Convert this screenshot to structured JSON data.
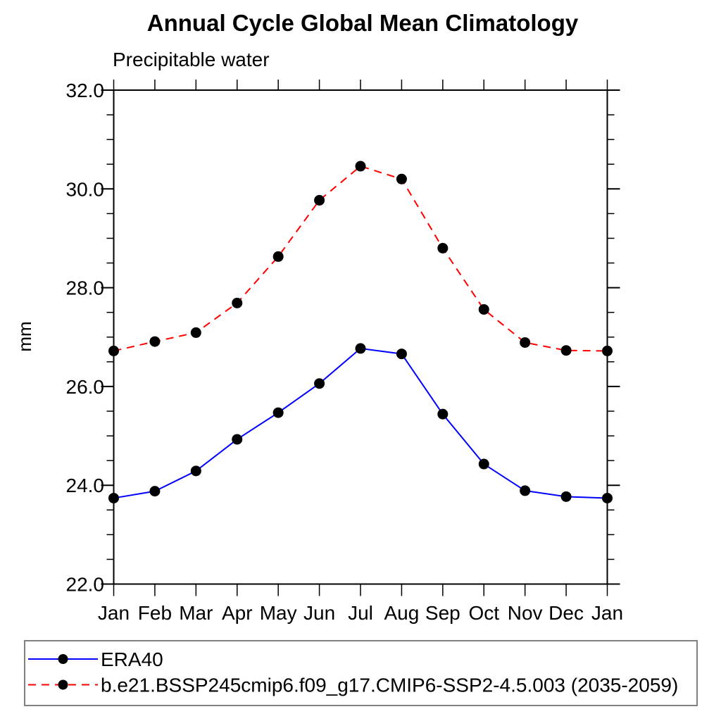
{
  "page": {
    "background": "#ffffff",
    "text_color": "#000000"
  },
  "chart_data": {
    "type": "line",
    "title": "Annual Cycle Global Mean Climatology",
    "subtitle": "Precipitable water",
    "ylabel": "mm",
    "xlabel": "",
    "categories": [
      "Jan",
      "Feb",
      "Mar",
      "Apr",
      "May",
      "Jun",
      "Jul",
      "Aug",
      "Sep",
      "Oct",
      "Nov",
      "Dec",
      "Jan"
    ],
    "ylim": [
      22.0,
      32.0
    ],
    "y_minor_step": 0.5,
    "y_major_ticks": [
      {
        "value": 22.0,
        "label": "22.0"
      },
      {
        "value": 24.0,
        "label": "24.0"
      },
      {
        "value": 26.0,
        "label": "26.0"
      },
      {
        "value": 28.0,
        "label": "28.0"
      },
      {
        "value": 30.0,
        "label": "30.0"
      },
      {
        "value": 32.0,
        "label": "32.0"
      }
    ],
    "grid": false,
    "legend_position": "bottom",
    "frame_color": "#000000",
    "legend_border_color": "#808080",
    "marker_color": "#000000",
    "series": [
      {
        "name": "ERA40",
        "line_color": "#0000ff",
        "line_style": "solid",
        "marker": "filled-circle",
        "values": [
          23.74,
          23.88,
          24.29,
          24.93,
          25.47,
          26.06,
          26.77,
          26.66,
          25.44,
          24.43,
          23.89,
          23.77,
          23.74
        ]
      },
      {
        "name": "b.e21.BSSP245cmip6.f09_g17.CMIP6-SSP2-4.5.003 (2035-2059)",
        "line_color": "#ff0000",
        "line_style": "dashed",
        "marker": "filled-circle",
        "values": [
          26.72,
          26.91,
          27.09,
          27.69,
          28.63,
          29.77,
          30.46,
          30.2,
          28.8,
          27.56,
          26.89,
          26.73,
          26.72
        ]
      }
    ]
  }
}
